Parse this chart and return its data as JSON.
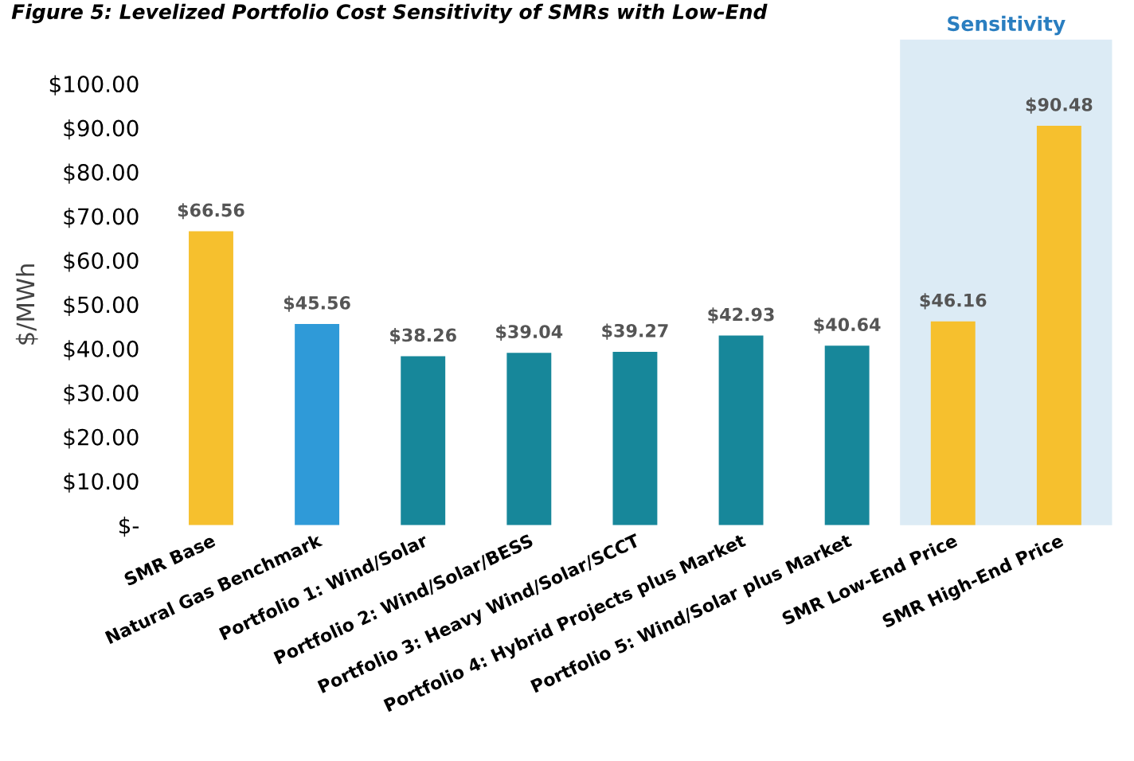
{
  "chart_data": {
    "type": "bar",
    "title": "Figure 5: Levelized Portfolio Cost Sensitivity of SMRs with Low-End",
    "ylabel": "$/MWh",
    "categories": [
      "SMR Base",
      "Natural Gas Benchmark",
      "Portfolio 1: Wind/Solar",
      "Portfolio 2: Wind/Solar/BESS",
      "Portfolio 3: Heavy Wind/Solar/SCCT",
      "Portfolio 4: Hybrid Projects plus Market",
      "Portfolio 5: Wind/Solar plus Market",
      "SMR Low-End Price",
      "SMR High-End Price"
    ],
    "values": [
      66.56,
      45.56,
      38.26,
      39.04,
      39.27,
      42.93,
      40.64,
      46.16,
      90.48
    ],
    "colors": [
      "#f6c02e",
      "#2f9ad8",
      "#17879a",
      "#17879a",
      "#17879a",
      "#17879a",
      "#17879a",
      "#f6c02e",
      "#f6c02e"
    ],
    "value_labels": [
      "$66.56",
      "$45.56",
      "$38.26",
      "$39.04",
      "$39.27",
      "$42.93",
      "$40.64",
      "$46.16",
      "$90.48"
    ],
    "ylim": [
      0,
      100
    ],
    "yticks": [
      {
        "value": 0,
        "label": "$-"
      },
      {
        "value": 10,
        "label": "$10.00"
      },
      {
        "value": 20,
        "label": "$20.00"
      },
      {
        "value": 30,
        "label": "$30.00"
      },
      {
        "value": 40,
        "label": "$40.00"
      },
      {
        "value": 50,
        "label": "$50.00"
      },
      {
        "value": 60,
        "label": "$60.00"
      },
      {
        "value": 70,
        "label": "$70.00"
      },
      {
        "value": 80,
        "label": "$80.00"
      },
      {
        "value": 90,
        "label": "$90.00"
      },
      {
        "value": 100,
        "label": "$100.00"
      }
    ],
    "bands": [
      {
        "axis": "x",
        "from": "SMR Low-End Price",
        "to": "SMR High-End Price",
        "label": "Sensitivity",
        "color": "#dcebf5"
      }
    ],
    "grid": false
  }
}
